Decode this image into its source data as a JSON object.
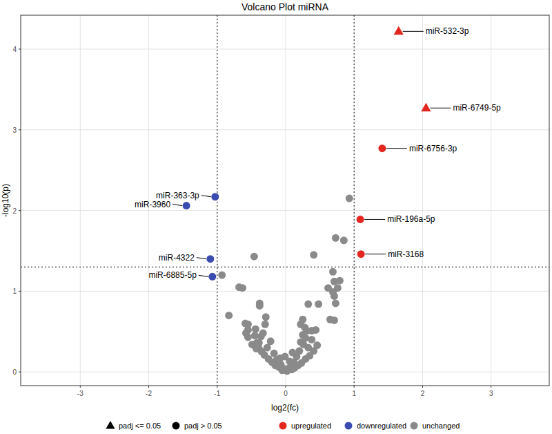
{
  "chart_data": {
    "type": "scatter",
    "title": "Volcano Plot miRNA",
    "x_label": "log2(fc)",
    "y_label": "-log10(p)",
    "xlim": [
      -3.87,
      3.85
    ],
    "ylim": [
      -0.17,
      4.42
    ],
    "xticks": [
      -3,
      -2,
      -1,
      0,
      1,
      2,
      3
    ],
    "yticks": [
      0,
      1,
      2,
      3,
      4
    ],
    "grid": true,
    "legend": "bottom",
    "x_thresholds": [
      -1,
      1
    ],
    "y_threshold": 1.3,
    "shape_legend": [
      {
        "label": "padj <= 0.05",
        "marker": "triangle"
      },
      {
        "label": "padj > 0.05",
        "marker": "circle"
      }
    ],
    "series": [
      {
        "name": "upregulated",
        "color": "#e3261f",
        "x": [
          1.65,
          2.05,
          1.41,
          1.09,
          1.1
        ],
        "values": [
          4.22,
          3.27,
          2.77,
          1.89,
          1.46
        ],
        "labels": [
          "miR-532-3p",
          "miR-6749-5p",
          "miR-6756-3p",
          "miR-196a-5p",
          "miR-3168"
        ],
        "padj_significant": [
          true,
          true,
          false,
          false,
          false
        ]
      },
      {
        "name": "downregulated",
        "color": "#3a4cb0",
        "x": [
          -1.03,
          -1.45,
          -1.1,
          -1.07
        ],
        "values": [
          2.17,
          2.06,
          1.4,
          1.18
        ],
        "labels": [
          "miR-363-3p",
          "miR-3960",
          "miR-4322",
          "miR-6885-5p"
        ],
        "padj_significant": [
          false,
          false,
          false,
          false
        ]
      },
      {
        "name": "unchanged",
        "color": "#8a8a8a",
        "x": [
          0.93,
          0.73,
          0.85,
          0.41,
          -0.46,
          0.69,
          -0.93,
          0.71,
          0.79,
          0.62,
          0.76,
          0.69,
          0.71,
          0.73,
          -0.68,
          -0.63,
          -0.83,
          -0.38,
          -0.38,
          0.33,
          0.48,
          0.71,
          0.65,
          -0.59,
          -0.55,
          -0.55,
          -0.58,
          -0.55,
          -0.29,
          -0.3,
          -0.44,
          -0.45,
          -0.42,
          -0.43,
          -0.39,
          -0.36,
          0.25,
          0.22,
          0.28,
          0.31,
          0.25,
          0.29,
          0.22,
          0.38,
          0.44,
          0.46,
          0.41,
          0.35,
          0.29,
          0.23,
          0.18,
          0.13,
          0.09,
          -0.05,
          -0.1,
          -0.15,
          -0.2,
          -0.25,
          -0.31,
          -0.35,
          -0.39,
          -0.27,
          -0.17,
          -0.13,
          -0.07,
          -0.03,
          0.02,
          0.05,
          0.12,
          0.16,
          0.2,
          0.26,
          -0.22,
          -0.33,
          -0.49,
          0.33,
          0.38,
          0.06,
          -0.01,
          -0.08,
          0.1
        ],
        "values": [
          2.15,
          1.66,
          1.63,
          1.45,
          1.43,
          1.24,
          1.2,
          1.12,
          1.13,
          1.04,
          1.04,
          0.99,
          0.94,
          0.85,
          1.05,
          1.04,
          0.7,
          0.85,
          0.82,
          0.84,
          0.84,
          0.64,
          0.65,
          0.6,
          0.59,
          0.52,
          0.48,
          0.43,
          0.68,
          0.59,
          0.53,
          0.45,
          0.36,
          0.29,
          0.36,
          0.44,
          0.65,
          0.59,
          0.55,
          0.51,
          0.46,
          0.42,
          0.37,
          0.51,
          0.52,
          0.33,
          0.26,
          0.2,
          0.16,
          0.11,
          0.08,
          0.05,
          0.03,
          0.02,
          0.06,
          0.08,
          0.12,
          0.16,
          0.21,
          0.25,
          0.29,
          0.3,
          0.23,
          0.15,
          0.09,
          0.04,
          0.01,
          0.05,
          0.12,
          0.19,
          0.26,
          0.34,
          0.38,
          0.48,
          0.34,
          0.3,
          0.4,
          0.13,
          0.19,
          0.17,
          0.24
        ]
      }
    ]
  }
}
